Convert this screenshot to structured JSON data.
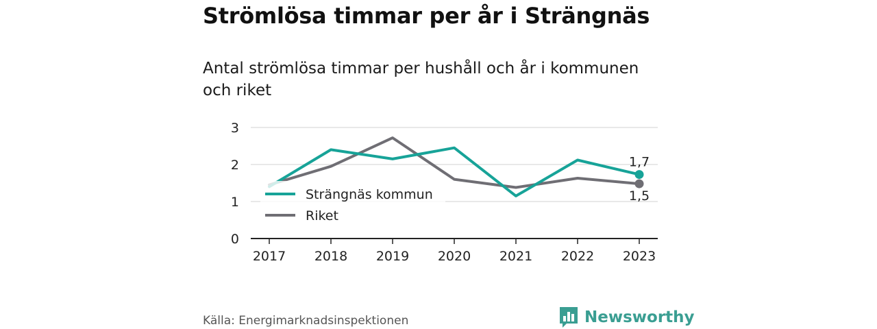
{
  "header": {
    "title": "Strömlösa timmar per år i Strängnäs",
    "subtitle": "Antal strömlösa timmar per hushåll och år i kommunen och riket"
  },
  "footer": {
    "source": "Källa: Energimarknadsinspektionen",
    "brand": "Newsworthy",
    "brand_logo_icon": "bar-chart-speech-bubble-icon"
  },
  "colors": {
    "strangnas": "#17a398",
    "riket": "#6f6e74",
    "grid": "#d9d9d9",
    "axis": "#222222",
    "brand": "#3a9e92"
  },
  "chart_data": {
    "type": "line",
    "x": [
      "2017",
      "2018",
      "2019",
      "2020",
      "2021",
      "2022",
      "2023"
    ],
    "yticks": [
      "0",
      "1",
      "2",
      "3"
    ],
    "ylim": [
      0,
      3
    ],
    "grid": true,
    "legend_position": "bottom-left",
    "series": [
      {
        "name": "Strängnäs kommun",
        "key": "strangnas",
        "values": [
          1.4,
          2.4,
          2.15,
          2.45,
          1.15,
          2.12,
          1.73
        ],
        "end_label": "1,7"
      },
      {
        "name": "Riket",
        "key": "riket",
        "values": [
          1.45,
          1.95,
          2.72,
          1.6,
          1.38,
          1.63,
          1.48
        ],
        "end_label": "1,5"
      }
    ]
  }
}
